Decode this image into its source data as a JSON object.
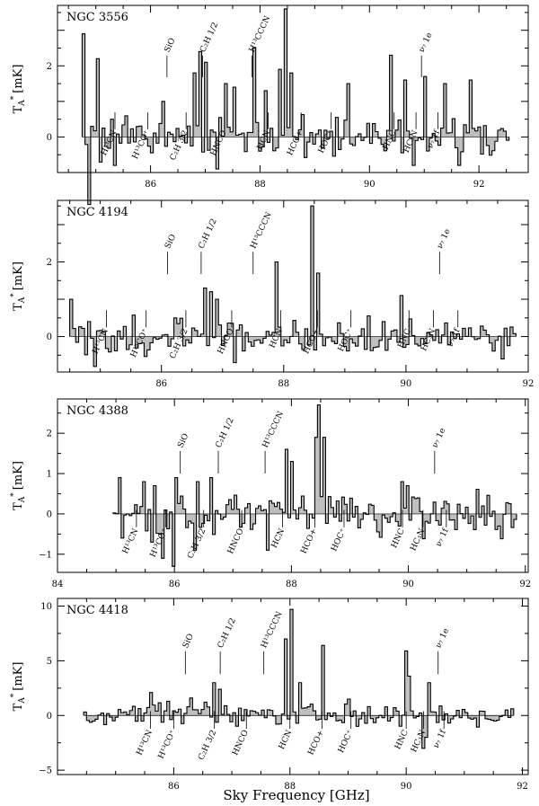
{
  "figure": {
    "xlabel": "Sky Frequency [GHz]",
    "ylabel_base": "T",
    "ylabel_sub": "A",
    "ylabel_sup": "*",
    "ylabel_unit": "[mK]"
  },
  "chart_data": [
    {
      "type": "bar",
      "title": "NGC 3556",
      "xlim": [
        84.3,
        92.9
      ],
      "ylim": [
        -1.0,
        3.7
      ],
      "xticks": [
        86,
        88,
        90,
        92
      ],
      "yticks": [
        -1,
        0,
        1,
        2,
        3
      ],
      "ytick_labels": [
        "0",
        "2"
      ],
      "ytick_label_values": [
        0,
        2
      ],
      "x_range": [
        84.75,
        92.55
      ],
      "n_channels": 150,
      "seed": 3556,
      "noise": 0.55,
      "peaks": [
        {
          "x": 84.8,
          "v": 2.9
        },
        {
          "x": 85.05,
          "v": 2.2
        },
        {
          "x": 86.25,
          "v": 1.0
        },
        {
          "x": 86.8,
          "v": 1.8
        },
        {
          "x": 86.9,
          "v": 2.4
        },
        {
          "x": 87.0,
          "v": 2.1
        },
        {
          "x": 87.4,
          "v": 1.5
        },
        {
          "x": 87.55,
          "v": 1.4
        },
        {
          "x": 87.9,
          "v": 2.5
        },
        {
          "x": 88.1,
          "v": 1.3
        },
        {
          "x": 88.35,
          "v": 1.9
        },
        {
          "x": 88.45,
          "v": 3.6
        },
        {
          "x": 88.55,
          "v": 1.8
        },
        {
          "x": 89.6,
          "v": 1.5
        },
        {
          "x": 90.4,
          "v": 2.3
        },
        {
          "x": 90.65,
          "v": 1.6
        },
        {
          "x": 91.0,
          "v": 1.7
        },
        {
          "x": 91.4,
          "v": 1.5
        },
        {
          "x": 91.85,
          "v": 1.6
        },
        {
          "x": 84.9,
          "v": -1.9
        },
        {
          "x": 85.35,
          "v": -0.8
        },
        {
          "x": 87.2,
          "v": -0.9
        },
        {
          "x": 90.8,
          "v": -0.8
        },
        {
          "x": 91.65,
          "v": -0.8
        }
      ],
      "labels_above": [
        {
          "text": "SiO",
          "x": 86.3
        },
        {
          "text": "C₂H 1/2",
          "x": 86.95
        },
        {
          "text": "H¹³CCCN",
          "x": 87.85
        },
        {
          "text": "ν₇ 1e",
          "x": 90.95
        }
      ],
      "labels_below": [
        {
          "text": "H¹³CN",
          "x": 85.35
        },
        {
          "text": "H¹³CO⁺",
          "x": 85.95
        },
        {
          "text": "C₂H 3/2",
          "x": 86.65
        },
        {
          "text": "HNCO",
          "x": 87.35
        },
        {
          "text": "HCN",
          "x": 88.15
        },
        {
          "text": "HCO+",
          "x": 88.75
        },
        {
          "text": "HOC⁺",
          "x": 89.3
        },
        {
          "text": "HNC",
          "x": 90.45
        },
        {
          "text": "HC₃N",
          "x": 90.85
        },
        {
          "text": "ν₇ 1f",
          "x": 91.25
        }
      ]
    },
    {
      "type": "bar",
      "title": "NGC 4194",
      "xlim": [
        84.3,
        92.0
      ],
      "ylim": [
        -0.95,
        3.65
      ],
      "xticks": [
        86,
        88,
        90,
        92
      ],
      "yticks": [
        0,
        1,
        2,
        3
      ],
      "ytick_labels": [
        "0",
        "2"
      ],
      "ytick_label_values": [
        0,
        2
      ],
      "x_range": [
        84.5,
        91.8
      ],
      "n_channels": 150,
      "seed": 4194,
      "noise": 0.45,
      "peaks": [
        {
          "x": 84.5,
          "v": 1.0
        },
        {
          "x": 86.7,
          "v": 1.3
        },
        {
          "x": 86.8,
          "v": 1.2
        },
        {
          "x": 86.9,
          "v": 1.0
        },
        {
          "x": 87.9,
          "v": 2.0
        },
        {
          "x": 88.45,
          "v": 3.5
        },
        {
          "x": 88.55,
          "v": 1.7
        },
        {
          "x": 89.95,
          "v": 1.1
        },
        {
          "x": 84.9,
          "v": -0.8
        },
        {
          "x": 87.2,
          "v": -0.7
        },
        {
          "x": 91.6,
          "v": -0.6
        }
      ],
      "labels_above": [
        {
          "text": "SiO",
          "x": 86.1
        },
        {
          "text": "C₂H 1/2",
          "x": 86.65
        },
        {
          "text": "H¹³CCCN",
          "x": 87.5
        },
        {
          "text": "ν₇ 1e",
          "x": 90.55
        }
      ],
      "labels_below": [
        {
          "text": "H¹³CN",
          "x": 85.1
        },
        {
          "text": "H¹³CO⁺",
          "x": 85.75
        },
        {
          "text": "C₂H 3/2",
          "x": 86.4
        },
        {
          "text": "HNCO",
          "x": 87.15
        },
        {
          "text": "HCN",
          "x": 87.95
        },
        {
          "text": "HCO+",
          "x": 88.55
        },
        {
          "text": "HOC⁺",
          "x": 89.1
        },
        {
          "text": "HNC",
          "x": 90.05
        },
        {
          "text": "HC₃N",
          "x": 90.45
        },
        {
          "text": "ν₇ 1f",
          "x": 90.85
        }
      ]
    },
    {
      "type": "bar",
      "title": "NGC 4388",
      "xlim": [
        84.0,
        92.05
      ],
      "ylim": [
        -1.45,
        2.85
      ],
      "xticks": [
        84,
        86,
        88,
        90,
        92
      ],
      "yticks": [
        -1,
        0,
        1,
        2
      ],
      "ytick_labels": [
        "−1",
        "0",
        "1",
        "2"
      ],
      "ytick_label_values": [
        -1,
        0,
        1,
        2
      ],
      "x_range": [
        84.95,
        91.85
      ],
      "n_channels": 150,
      "seed": 4388,
      "noise": 0.55,
      "peaks": [
        {
          "x": 85.05,
          "v": 0.9
        },
        {
          "x": 85.5,
          "v": 0.8
        },
        {
          "x": 85.65,
          "v": 0.7
        },
        {
          "x": 86.05,
          "v": 0.9
        },
        {
          "x": 86.4,
          "v": 0.8
        },
        {
          "x": 86.65,
          "v": 0.9
        },
        {
          "x": 87.9,
          "v": 1.6
        },
        {
          "x": 88.0,
          "v": 1.3
        },
        {
          "x": 88.4,
          "v": 1.9
        },
        {
          "x": 88.45,
          "v": 2.7
        },
        {
          "x": 88.55,
          "v": 1.9
        },
        {
          "x": 89.9,
          "v": 0.8
        },
        {
          "x": 90.0,
          "v": 0.7
        },
        {
          "x": 86.0,
          "v": -1.3
        },
        {
          "x": 85.8,
          "v": -1.1
        },
        {
          "x": 86.35,
          "v": -0.9
        },
        {
          "x": 87.6,
          "v": -0.9
        },
        {
          "x": 85.1,
          "v": -0.6
        }
      ],
      "labels_above": [
        {
          "text": "SiO",
          "x": 86.1
        },
        {
          "text": "C₂H 1/2",
          "x": 86.75
        },
        {
          "text": "H¹³CCCN",
          "x": 87.55
        },
        {
          "text": "ν₇ 1e",
          "x": 90.45
        }
      ],
      "labels_below": [
        {
          "text": "H¹³CN",
          "x": 85.35
        },
        {
          "text": "H¹³CO⁺",
          "x": 85.85
        },
        {
          "text": "C₂H 3/2",
          "x": 86.5
        },
        {
          "text": "HNCO",
          "x": 87.15
        },
        {
          "text": "HCN",
          "x": 87.85
        },
        {
          "text": "HCO+",
          "x": 88.4
        },
        {
          "text": "HOC⁺",
          "x": 88.9
        },
        {
          "text": "HNC",
          "x": 89.9
        },
        {
          "text": "HC₃N",
          "x": 90.25
        },
        {
          "text": "ν₇ 1f",
          "x": 90.65
        }
      ]
    },
    {
      "type": "bar",
      "title": "NGC 4418",
      "xlim": [
        84.0,
        92.1
      ],
      "ylim": [
        -5.4,
        10.7
      ],
      "xticks": [
        86,
        88,
        90,
        92
      ],
      "yticks": [
        -5,
        0,
        5,
        10
      ],
      "ytick_labels": [
        "−5",
        "0",
        "5",
        "10"
      ],
      "ytick_label_values": [
        -5,
        0,
        5,
        10
      ],
      "x_range": [
        84.45,
        91.85
      ],
      "n_channels": 150,
      "seed": 4418,
      "noise": 1.0,
      "peaks": [
        {
          "x": 85.6,
          "v": 2.1
        },
        {
          "x": 86.3,
          "v": 1.6
        },
        {
          "x": 86.7,
          "v": 3.0
        },
        {
          "x": 86.8,
          "v": 2.4
        },
        {
          "x": 87.95,
          "v": 7.0
        },
        {
          "x": 88.05,
          "v": 9.7
        },
        {
          "x": 88.15,
          "v": 3.0
        },
        {
          "x": 88.55,
          "v": 6.4
        },
        {
          "x": 90.0,
          "v": 5.9
        },
        {
          "x": 90.05,
          "v": 3.6
        },
        {
          "x": 90.3,
          "v": 4.5
        },
        {
          "x": 90.4,
          "v": 3.0
        },
        {
          "x": 85.9,
          "v": 1.3
        },
        {
          "x": 89.0,
          "v": 1.5
        },
        {
          "x": 90.3,
          "v": -3.0
        },
        {
          "x": 90.35,
          "v": -2.0
        }
      ],
      "labels_above": [
        {
          "text": "SiO",
          "x": 86.2
        },
        {
          "text": "C₂H 1/2",
          "x": 86.8
        },
        {
          "text": "H¹³CCCN",
          "x": 87.55
        },
        {
          "text": "ν₇ 1e",
          "x": 90.55
        }
      ],
      "labels_below": [
        {
          "text": "H¹³CN",
          "x": 85.6
        },
        {
          "text": "H¹³CO⁺",
          "x": 86.0
        },
        {
          "text": "C₂H 3/2",
          "x": 86.7
        },
        {
          "text": "HNCO",
          "x": 87.25
        },
        {
          "text": "HCN",
          "x": 88.0
        },
        {
          "text": "HCO+",
          "x": 88.55
        },
        {
          "text": "HOC⁺",
          "x": 89.05
        },
        {
          "text": "HNC",
          "x": 90.0
        },
        {
          "text": "HC₃N",
          "x": 90.3
        },
        {
          "text": "ν₇ 1f",
          "x": 90.65
        }
      ]
    }
  ]
}
